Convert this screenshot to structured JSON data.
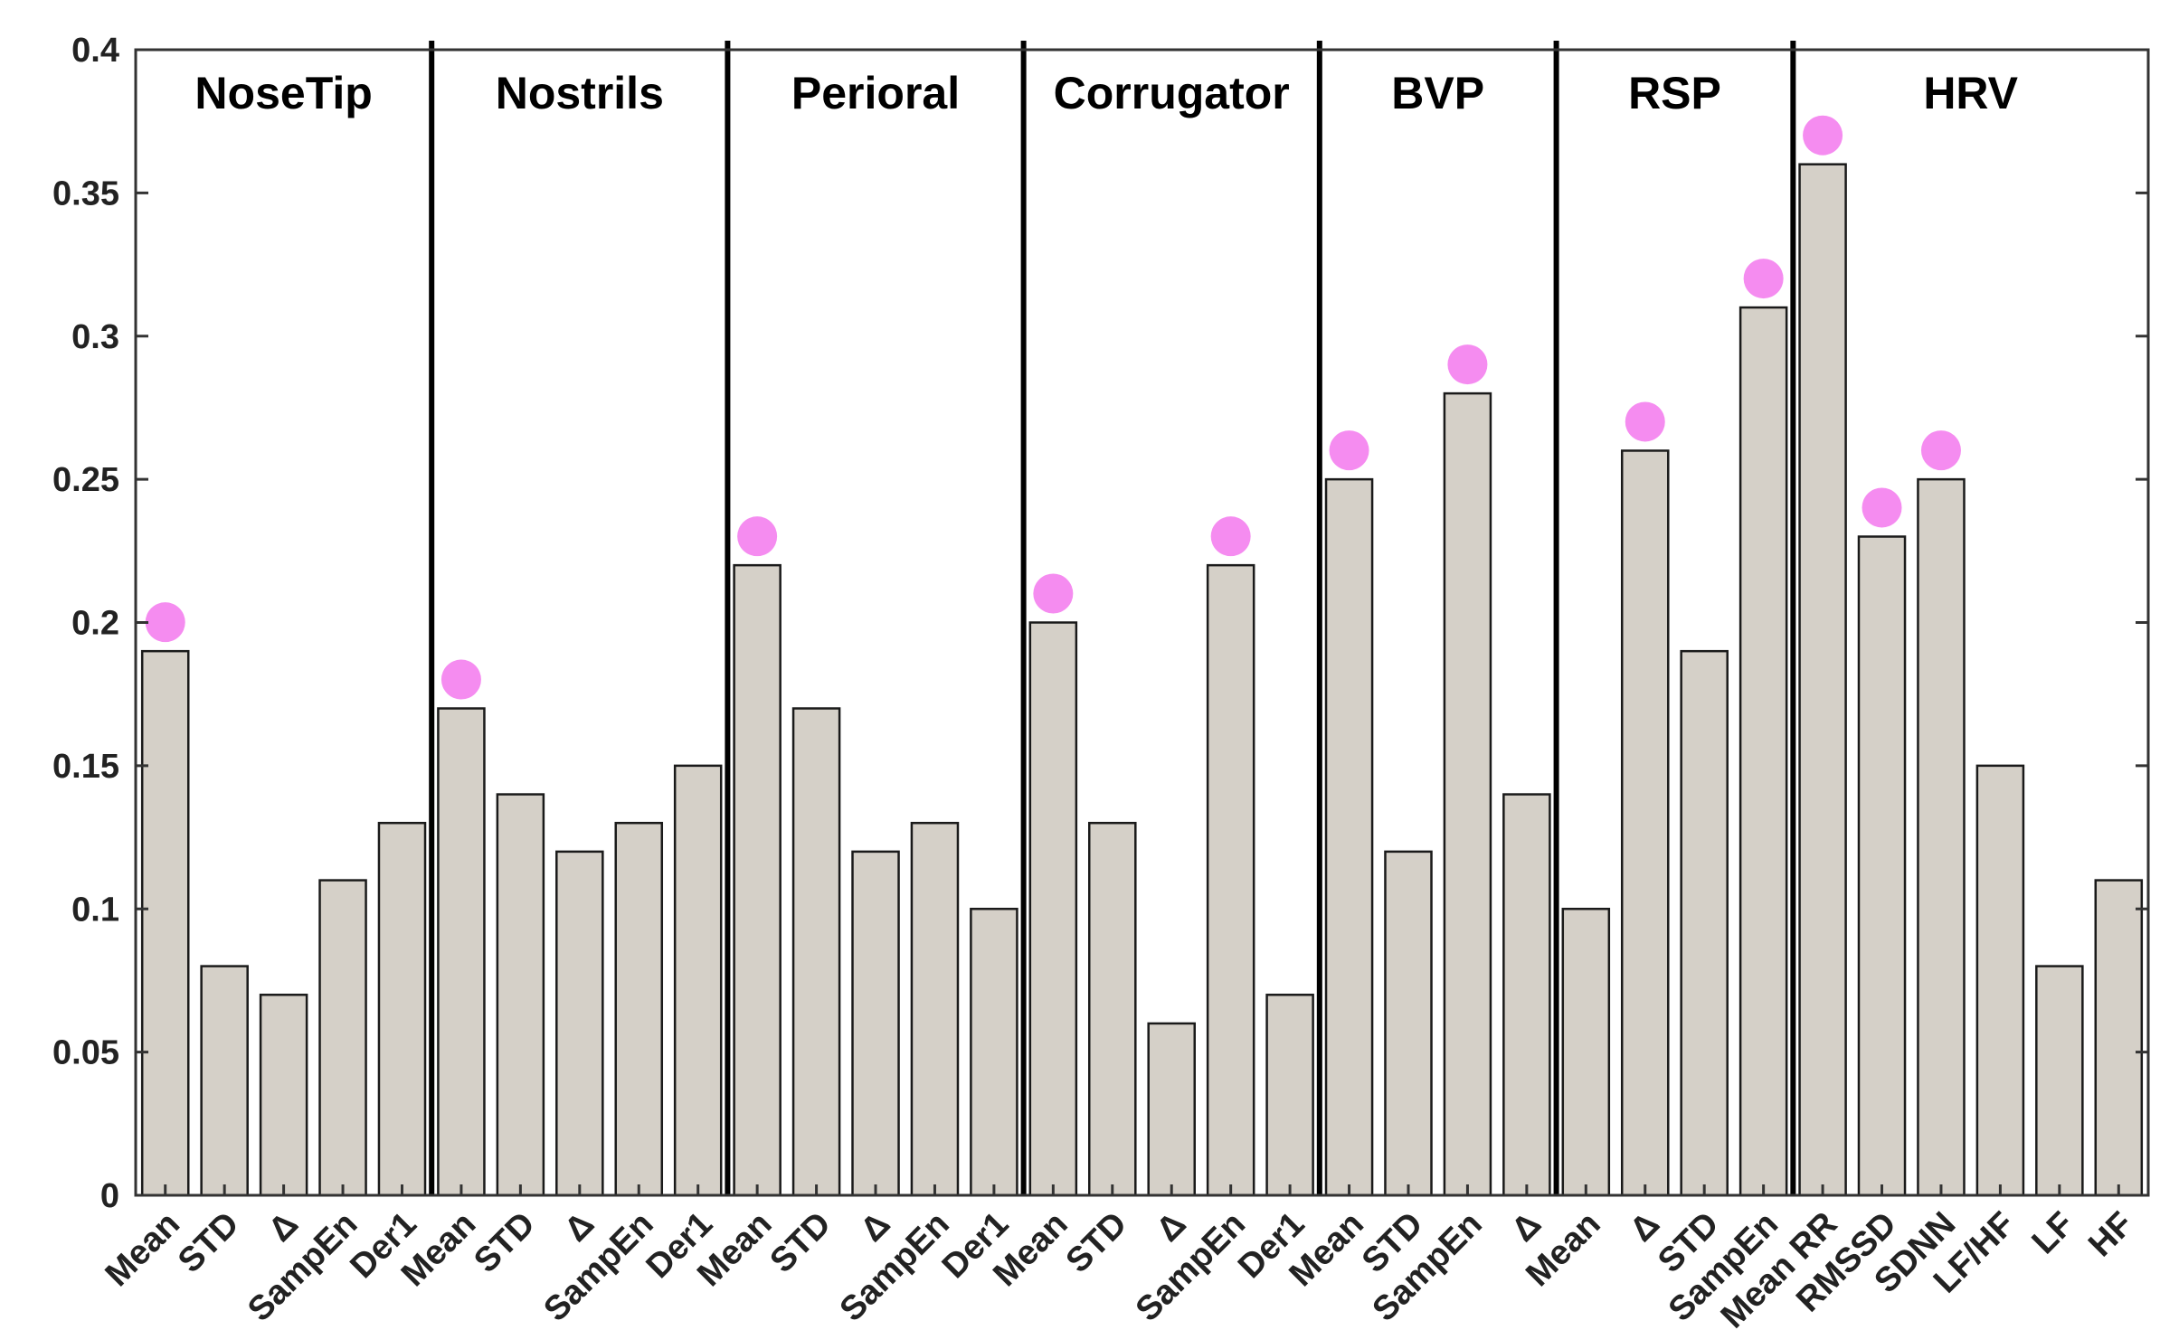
{
  "chart_data": {
    "type": "bar",
    "title": "",
    "xlabel": "",
    "ylabel": "",
    "ylim": [
      0,
      0.4
    ],
    "yticks": [
      0,
      0.05,
      0.1,
      0.15,
      0.2,
      0.25,
      0.3,
      0.35,
      0.4
    ],
    "ytick_labels": [
      "0",
      "0.05",
      "0.1",
      "0.15",
      "0.2",
      "0.25",
      "0.3",
      "0.35",
      "0.4"
    ],
    "grid": false,
    "bar_color": "#d5d0c8",
    "marker_color": "#f58cf0",
    "categories": [
      "Mean",
      "STD",
      "Δ",
      "SampEn",
      "Der1",
      "Mean",
      "STD",
      "Δ",
      "SampEn",
      "Der1",
      "Mean",
      "STD",
      "Δ",
      "SampEn",
      "Der1",
      "Mean",
      "STD",
      "Δ",
      "SampEn",
      "Der1",
      "Mean",
      "STD",
      "SampEn",
      "Δ",
      "Mean",
      "Δ",
      "STD",
      "SampEn",
      "Mean RR",
      "RMSSD",
      "SDNN",
      "LF/HF",
      "LF",
      "HF"
    ],
    "values": [
      0.19,
      0.08,
      0.07,
      0.11,
      0.13,
      0.17,
      0.14,
      0.12,
      0.13,
      0.15,
      0.22,
      0.17,
      0.12,
      0.13,
      0.1,
      0.2,
      0.13,
      0.06,
      0.22,
      0.07,
      0.25,
      0.12,
      0.28,
      0.14,
      0.1,
      0.26,
      0.19,
      0.31,
      0.36,
      0.23,
      0.25,
      0.15,
      0.08,
      0.11
    ],
    "markers": [
      0,
      5,
      10,
      15,
      18,
      20,
      22,
      25,
      27,
      28,
      29,
      30
    ],
    "groups": [
      {
        "name": "NoseTip",
        "start": 0,
        "end": 4
      },
      {
        "name": "Nostrils",
        "start": 5,
        "end": 9
      },
      {
        "name": "Perioral",
        "start": 10,
        "end": 14
      },
      {
        "name": "Corrugator",
        "start": 15,
        "end": 19
      },
      {
        "name": "BVP",
        "start": 20,
        "end": 23
      },
      {
        "name": "RSP",
        "start": 24,
        "end": 27
      },
      {
        "name": "HRV",
        "start": 28,
        "end": 33
      }
    ]
  }
}
